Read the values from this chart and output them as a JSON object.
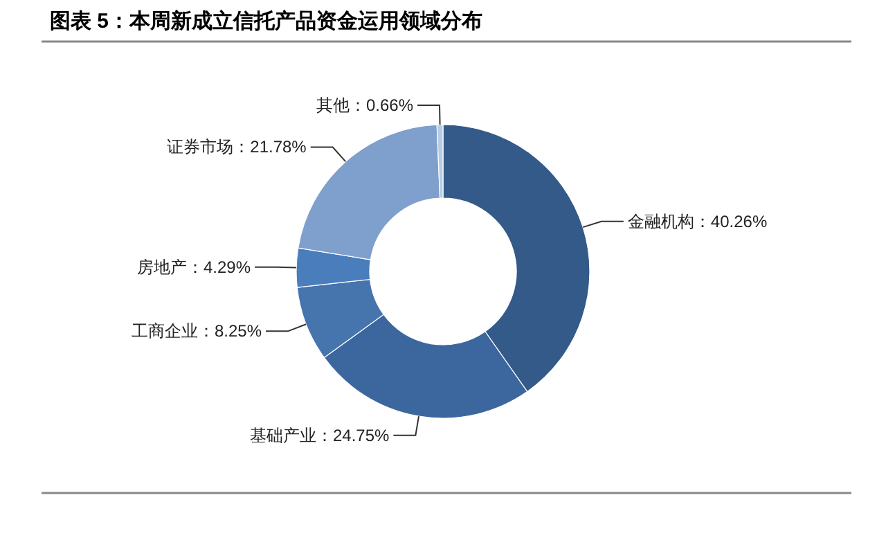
{
  "chart_data": {
    "type": "donut",
    "title": "图表 5：本周新成立信托产品资金运用领域分布",
    "categories": [
      "金融机构",
      "基础产业",
      "工商企业",
      "房地产",
      "证券市场",
      "其他"
    ],
    "values": [
      40.26,
      24.75,
      8.25,
      4.29,
      21.78,
      0.66
    ],
    "colors": [
      "#335a88",
      "#3c679e",
      "#4674ad",
      "#4a7dbc",
      "#7f9fcc",
      "#b8cbe4"
    ],
    "value_labels": [
      "：40.26%",
      "：24.75%",
      "：8.25%",
      "：4.29%",
      "：21.78%",
      "：0.66%"
    ],
    "legend": false
  }
}
